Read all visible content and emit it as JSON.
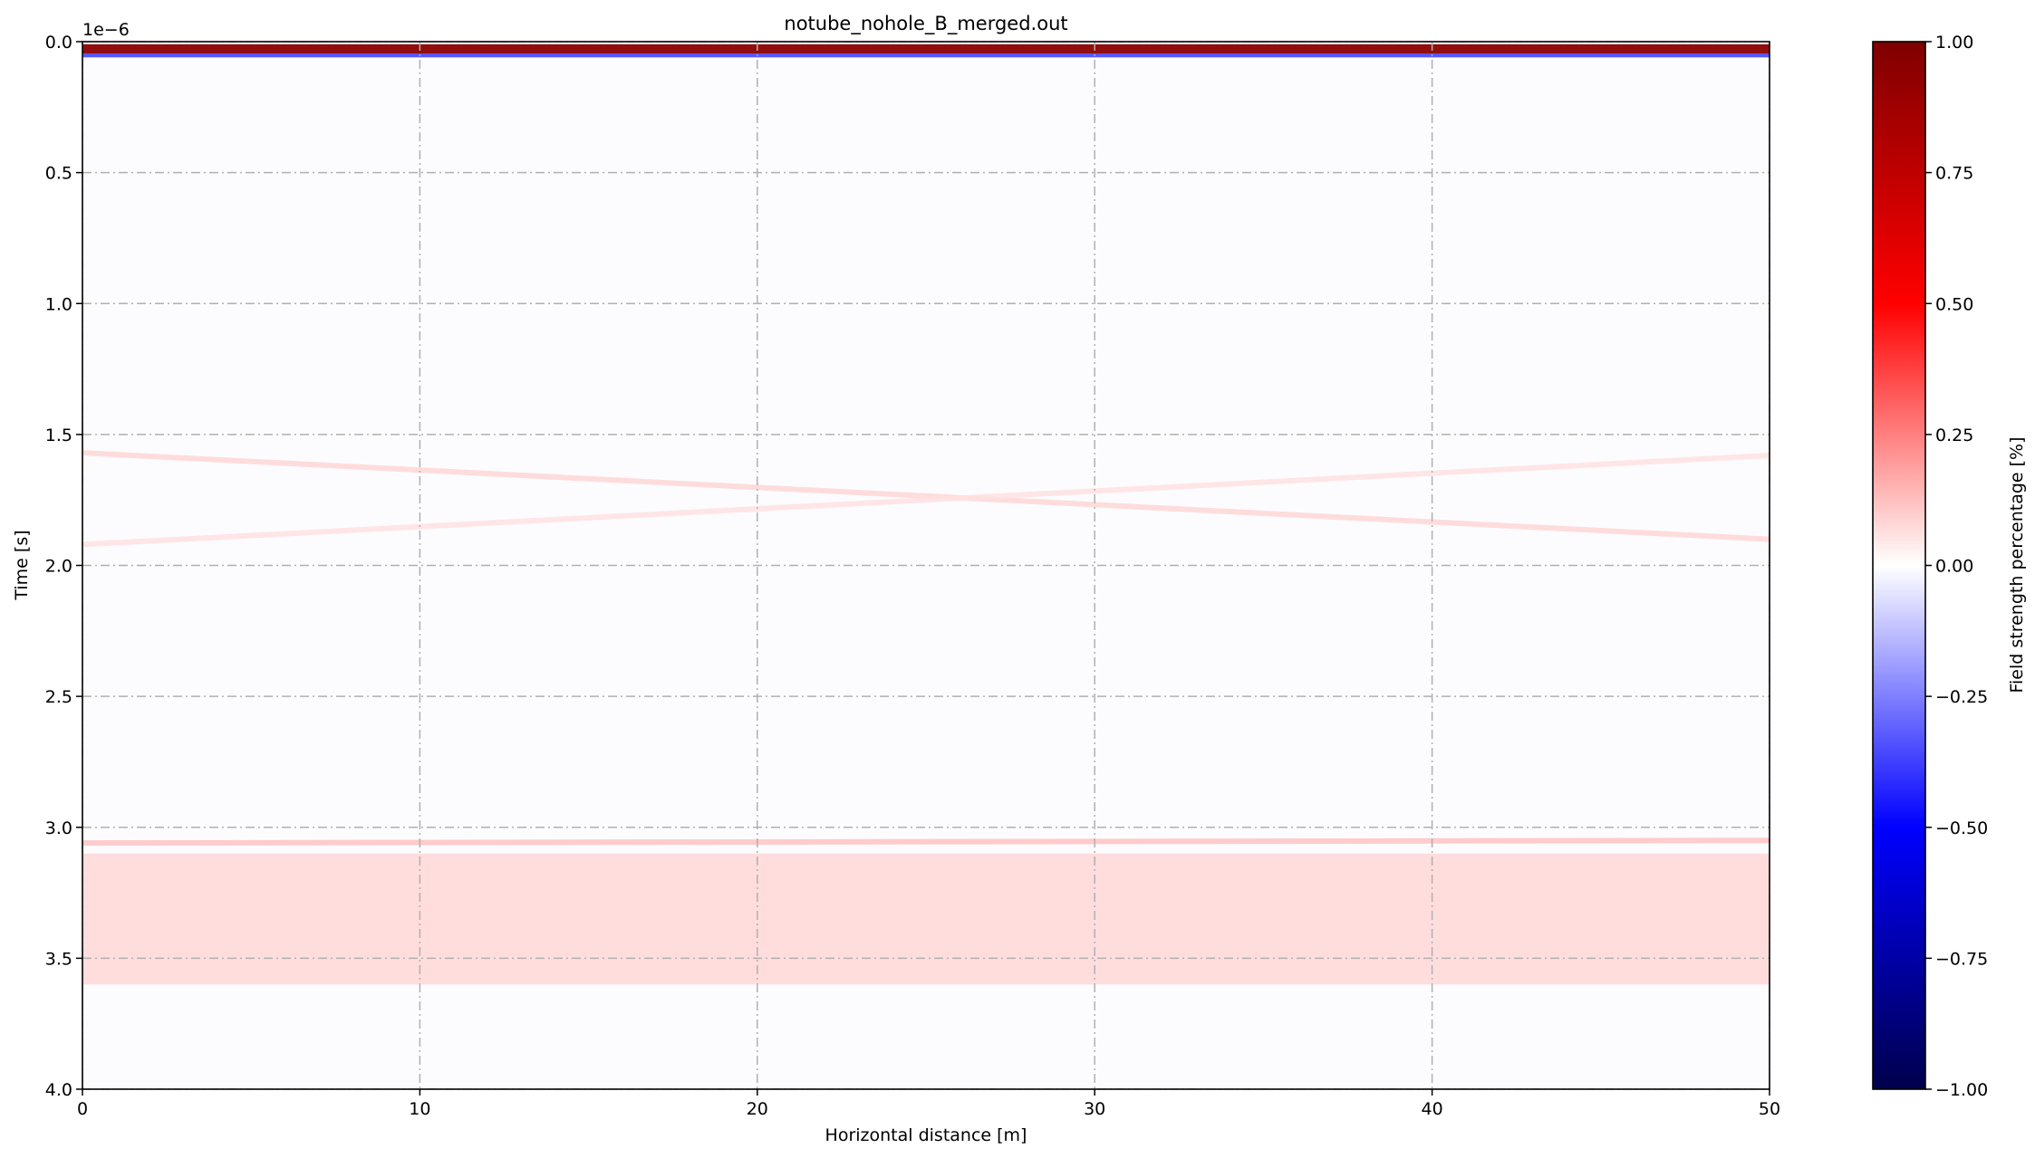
{
  "chart_data": {
    "type": "heatmap",
    "title": "notube_nohole_B_merged.out",
    "xlabel": "Horizontal distance [m]",
    "ylabel": "Time [s]",
    "y_offset_text": "1e−6",
    "xlim": [
      0,
      50
    ],
    "ylim": [
      4.0,
      0.0
    ],
    "x_ticks": [
      0,
      10,
      20,
      30,
      40,
      50
    ],
    "x_tick_labels": [
      "0",
      "10",
      "20",
      "30",
      "40",
      "50"
    ],
    "y_ticks": [
      0.0,
      0.5,
      1.0,
      1.5,
      2.0,
      2.5,
      3.0,
      3.5,
      4.0
    ],
    "y_tick_labels": [
      "0.0",
      "0.5",
      "1.0",
      "1.5",
      "2.0",
      "2.5",
      "3.0",
      "3.5",
      "4.0"
    ],
    "grid": true,
    "colormap": "seismic",
    "colormap_stops": [
      "#00004c",
      "#0000ff",
      "#ffffff",
      "#ff0000",
      "#7f0000"
    ],
    "colorbar": {
      "label": "Field strength percentage [%]",
      "range": [
        -1.0,
        1.0
      ],
      "ticks": [
        1.0,
        0.75,
        0.5,
        0.25,
        0.0,
        -0.25,
        -0.5,
        -0.75,
        -1.0
      ],
      "tick_labels": [
        "1.00",
        "0.75",
        "0.50",
        "0.25",
        "0.00",
        "−0.25",
        "−0.50",
        "−0.75",
        "−1.00"
      ]
    },
    "features": [
      {
        "name": "direct wave (positive)",
        "t_start": 0.01,
        "t_end": 0.045,
        "value": 0.95
      },
      {
        "name": "direct wave (negative)",
        "t_start": 0.045,
        "t_end": 0.06,
        "value": -0.35
      },
      {
        "name": "hyperbola reflection A",
        "x": [
          0,
          50
        ],
        "t": [
          1.57,
          1.9
        ],
        "value": 0.08
      },
      {
        "name": "hyperbola reflection B",
        "x": [
          0,
          50
        ],
        "t": [
          1.92,
          1.58
        ],
        "value": 0.06
      },
      {
        "name": "bottom interface",
        "x": [
          0,
          50
        ],
        "t": [
          3.06,
          3.05
        ],
        "value": 0.12
      },
      {
        "name": "scattered zone",
        "t_start": 3.1,
        "t_end": 3.6,
        "value": 0.07
      }
    ]
  }
}
